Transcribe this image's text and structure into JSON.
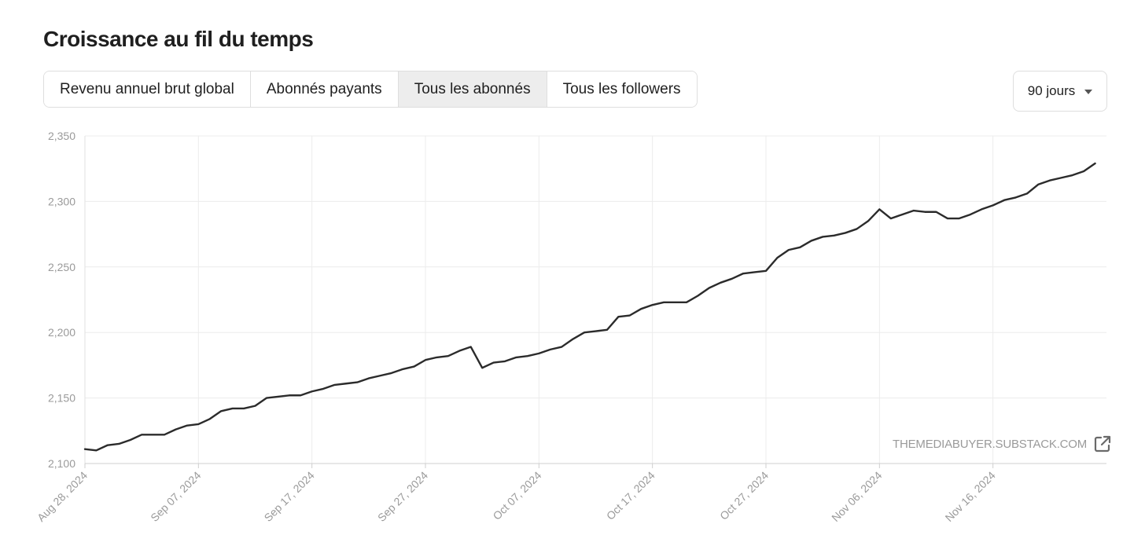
{
  "page": {
    "title": "Croissance au fil du temps"
  },
  "tabs": [
    {
      "label": "Revenu annuel brut global",
      "active": false
    },
    {
      "label": "Abonnés payants",
      "active": false
    },
    {
      "label": "Tous les abonnés",
      "active": true
    },
    {
      "label": "Tous les followers",
      "active": false
    }
  ],
  "range": {
    "selected": "90 jours"
  },
  "watermark": {
    "text": "THEMEDIABUYER.SUBSTACK.COM",
    "icon": "external-link-icon"
  },
  "colors": {
    "line": "#2b2b2b",
    "grid": "#ececec",
    "axis_text": "#9a9a9a",
    "active_tab": "#ededed"
  },
  "chart_data": {
    "type": "line",
    "title": "",
    "xlabel": "",
    "ylabel": "",
    "ylim": [
      2100,
      2350
    ],
    "yticks": [
      2100,
      2150,
      2200,
      2250,
      2300,
      2350
    ],
    "ytick_labels": [
      "2,100",
      "2,150",
      "2,200",
      "2,250",
      "2,300",
      "2,350"
    ],
    "xlim": [
      "2024-08-28",
      "2024-11-26"
    ],
    "xticks": [
      "2024-08-28",
      "2024-09-07",
      "2024-09-17",
      "2024-09-27",
      "2024-10-07",
      "2024-10-17",
      "2024-10-27",
      "2024-11-06",
      "2024-11-16"
    ],
    "xtick_labels": [
      "Aug 28, 2024",
      "Sep 07, 2024",
      "Sep 17, 2024",
      "Sep 27, 2024",
      "Oct 07, 2024",
      "Oct 17, 2024",
      "Oct 27, 2024",
      "Nov 06, 2024",
      "Nov 16, 2024"
    ],
    "grid": true,
    "legend": "none",
    "series": [
      {
        "points": [
          [
            "2024-08-28",
            2111
          ],
          [
            "2024-08-29",
            2110
          ],
          [
            "2024-08-30",
            2114
          ],
          [
            "2024-08-31",
            2115
          ],
          [
            "2024-09-01",
            2118
          ],
          [
            "2024-09-02",
            2122
          ],
          [
            "2024-09-03",
            2122
          ],
          [
            "2024-09-04",
            2122
          ],
          [
            "2024-09-05",
            2126
          ],
          [
            "2024-09-06",
            2129
          ],
          [
            "2024-09-07",
            2130
          ],
          [
            "2024-09-08",
            2134
          ],
          [
            "2024-09-09",
            2140
          ],
          [
            "2024-09-10",
            2142
          ],
          [
            "2024-09-11",
            2142
          ],
          [
            "2024-09-12",
            2144
          ],
          [
            "2024-09-13",
            2150
          ],
          [
            "2024-09-14",
            2151
          ],
          [
            "2024-09-15",
            2152
          ],
          [
            "2024-09-16",
            2152
          ],
          [
            "2024-09-17",
            2155
          ],
          [
            "2024-09-18",
            2157
          ],
          [
            "2024-09-19",
            2160
          ],
          [
            "2024-09-20",
            2161
          ],
          [
            "2024-09-21",
            2162
          ],
          [
            "2024-09-22",
            2165
          ],
          [
            "2024-09-23",
            2167
          ],
          [
            "2024-09-24",
            2169
          ],
          [
            "2024-09-25",
            2172
          ],
          [
            "2024-09-26",
            2174
          ],
          [
            "2024-09-27",
            2179
          ],
          [
            "2024-09-28",
            2181
          ],
          [
            "2024-09-29",
            2182
          ],
          [
            "2024-09-30",
            2186
          ],
          [
            "2024-10-01",
            2189
          ],
          [
            "2024-10-02",
            2173
          ],
          [
            "2024-10-03",
            2177
          ],
          [
            "2024-10-04",
            2178
          ],
          [
            "2024-10-05",
            2181
          ],
          [
            "2024-10-06",
            2182
          ],
          [
            "2024-10-07",
            2184
          ],
          [
            "2024-10-08",
            2187
          ],
          [
            "2024-10-09",
            2189
          ],
          [
            "2024-10-10",
            2195
          ],
          [
            "2024-10-11",
            2200
          ],
          [
            "2024-10-12",
            2201
          ],
          [
            "2024-10-13",
            2202
          ],
          [
            "2024-10-14",
            2212
          ],
          [
            "2024-10-15",
            2213
          ],
          [
            "2024-10-16",
            2218
          ],
          [
            "2024-10-17",
            2221
          ],
          [
            "2024-10-18",
            2223
          ],
          [
            "2024-10-19",
            2223
          ],
          [
            "2024-10-20",
            2223
          ],
          [
            "2024-10-21",
            2228
          ],
          [
            "2024-10-22",
            2234
          ],
          [
            "2024-10-23",
            2238
          ],
          [
            "2024-10-24",
            2241
          ],
          [
            "2024-10-25",
            2245
          ],
          [
            "2024-10-26",
            2246
          ],
          [
            "2024-10-27",
            2247
          ],
          [
            "2024-10-28",
            2257
          ],
          [
            "2024-10-29",
            2263
          ],
          [
            "2024-10-30",
            2265
          ],
          [
            "2024-10-31",
            2270
          ],
          [
            "2024-11-01",
            2273
          ],
          [
            "2024-11-02",
            2274
          ],
          [
            "2024-11-03",
            2276
          ],
          [
            "2024-11-04",
            2279
          ],
          [
            "2024-11-05",
            2285
          ],
          [
            "2024-11-06",
            2294
          ],
          [
            "2024-11-07",
            2287
          ],
          [
            "2024-11-08",
            2290
          ],
          [
            "2024-11-09",
            2293
          ],
          [
            "2024-11-10",
            2292
          ],
          [
            "2024-11-11",
            2292
          ],
          [
            "2024-11-12",
            2287
          ],
          [
            "2024-11-13",
            2287
          ],
          [
            "2024-11-14",
            2290
          ],
          [
            "2024-11-15",
            2294
          ],
          [
            "2024-11-16",
            2297
          ],
          [
            "2024-11-17",
            2301
          ],
          [
            "2024-11-18",
            2303
          ],
          [
            "2024-11-19",
            2306
          ],
          [
            "2024-11-20",
            2313
          ],
          [
            "2024-11-21",
            2316
          ],
          [
            "2024-11-22",
            2318
          ],
          [
            "2024-11-23",
            2320
          ],
          [
            "2024-11-24",
            2323
          ],
          [
            "2024-11-25",
            2329
          ]
        ]
      }
    ]
  }
}
